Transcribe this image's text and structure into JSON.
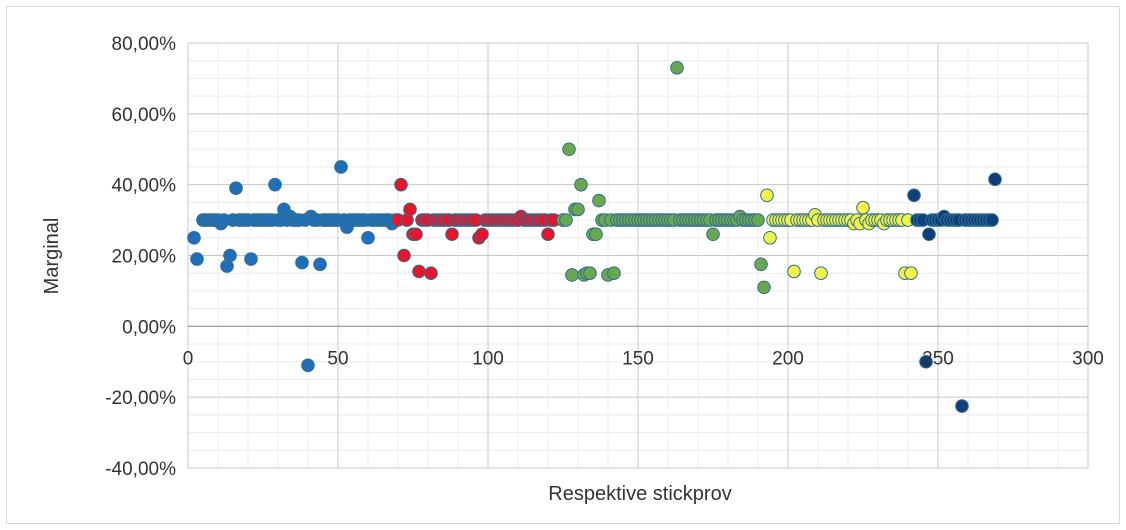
{
  "chart_data": {
    "type": "scatter",
    "title": "",
    "xlabel": "Respektive stickprov",
    "ylabel": "Marginal",
    "xlim": [
      0,
      300
    ],
    "ylim": [
      -40,
      80
    ],
    "x_ticks": [
      "0",
      "50",
      "100",
      "150",
      "200",
      "250",
      "300"
    ],
    "y_ticks": [
      "80,00%",
      "60,00%",
      "40,00%",
      "20,00%",
      "0,00%",
      "-20,00%",
      "-40,00%"
    ],
    "grid": true,
    "legend": "none",
    "series": [
      {
        "color": "#1f6fba",
        "points": [
          [
            2,
            25
          ],
          [
            3,
            19
          ],
          [
            5,
            30
          ],
          [
            6,
            30
          ],
          [
            7,
            30
          ],
          [
            8,
            30
          ],
          [
            9,
            30
          ],
          [
            10,
            30
          ],
          [
            11,
            29
          ],
          [
            12,
            30
          ],
          [
            13,
            17
          ],
          [
            14,
            20
          ],
          [
            15,
            30
          ],
          [
            16,
            39
          ],
          [
            17,
            30
          ],
          [
            18,
            30
          ],
          [
            19,
            30
          ],
          [
            20,
            30
          ],
          [
            21,
            19
          ],
          [
            22,
            30
          ],
          [
            23,
            30
          ],
          [
            24,
            30
          ],
          [
            25,
            30
          ],
          [
            26,
            30
          ],
          [
            27,
            30
          ],
          [
            28,
            30
          ],
          [
            29,
            40
          ],
          [
            30,
            30
          ],
          [
            31,
            30
          ],
          [
            32,
            33
          ],
          [
            33,
            30
          ],
          [
            34,
            31
          ],
          [
            35,
            30
          ],
          [
            36,
            30
          ],
          [
            37,
            30
          ],
          [
            38,
            18
          ],
          [
            39,
            30
          ],
          [
            40,
            -11
          ],
          [
            41,
            31
          ],
          [
            42,
            30
          ],
          [
            43,
            30
          ],
          [
            44,
            17.5
          ],
          [
            45,
            30
          ],
          [
            46,
            30
          ],
          [
            47,
            30
          ],
          [
            48,
            30
          ],
          [
            49,
            30
          ],
          [
            50,
            30
          ],
          [
            51,
            45
          ],
          [
            52,
            30
          ],
          [
            53,
            28
          ],
          [
            54,
            30
          ],
          [
            55,
            30
          ],
          [
            56,
            30
          ],
          [
            57,
            30
          ],
          [
            58,
            30
          ],
          [
            59,
            30
          ],
          [
            60,
            25
          ],
          [
            61,
            30
          ],
          [
            62,
            30
          ],
          [
            63,
            30
          ],
          [
            64,
            30
          ],
          [
            65,
            30
          ],
          [
            66,
            30
          ],
          [
            67,
            30
          ],
          [
            68,
            29
          ],
          [
            69,
            30
          ]
        ]
      },
      {
        "color": "#e8142a",
        "points": [
          [
            70,
            30
          ],
          [
            71,
            40
          ],
          [
            72,
            20
          ],
          [
            73,
            30
          ],
          [
            74,
            33
          ],
          [
            75,
            26
          ],
          [
            76,
            26
          ],
          [
            77,
            15.5
          ],
          [
            78,
            30
          ],
          [
            79,
            30
          ],
          [
            80,
            30
          ],
          [
            81,
            15
          ],
          [
            82,
            30
          ],
          [
            83,
            30
          ],
          [
            84,
            30
          ],
          [
            85,
            30
          ],
          [
            86,
            30
          ],
          [
            87,
            30
          ],
          [
            88,
            26
          ],
          [
            89,
            30
          ],
          [
            90,
            30
          ],
          [
            91,
            30
          ],
          [
            92,
            30
          ],
          [
            93,
            30
          ],
          [
            94,
            30
          ],
          [
            95,
            30
          ],
          [
            96,
            30
          ],
          [
            97,
            25
          ],
          [
            98,
            26
          ],
          [
            99,
            30
          ],
          [
            100,
            30
          ],
          [
            101,
            30
          ],
          [
            102,
            30
          ],
          [
            103,
            30
          ],
          [
            104,
            30
          ],
          [
            105,
            30
          ],
          [
            106,
            30
          ],
          [
            107,
            30
          ],
          [
            108,
            30
          ],
          [
            109,
            30
          ],
          [
            110,
            30
          ],
          [
            111,
            31
          ],
          [
            112,
            30
          ],
          [
            113,
            30
          ],
          [
            114,
            30
          ],
          [
            115,
            30
          ],
          [
            116,
            30
          ],
          [
            117,
            30
          ],
          [
            118,
            30
          ],
          [
            119,
            30
          ],
          [
            120,
            26
          ],
          [
            121,
            30
          ],
          [
            122,
            30
          ]
        ]
      },
      {
        "color": "#6aa84f",
        "points": [
          [
            125,
            30
          ],
          [
            126,
            30
          ],
          [
            127,
            50
          ],
          [
            128,
            14.5
          ],
          [
            129,
            33
          ],
          [
            130,
            33
          ],
          [
            131,
            40
          ],
          [
            132,
            14.5
          ],
          [
            133,
            15
          ],
          [
            134,
            15
          ],
          [
            135,
            26
          ],
          [
            136,
            26
          ],
          [
            137,
            35.5
          ],
          [
            138,
            30
          ],
          [
            139,
            30
          ],
          [
            140,
            14.5
          ],
          [
            141,
            30
          ],
          [
            142,
            15
          ],
          [
            143,
            30
          ],
          [
            144,
            30
          ],
          [
            145,
            30
          ],
          [
            146,
            30
          ],
          [
            147,
            30
          ],
          [
            148,
            30
          ],
          [
            149,
            30
          ],
          [
            150,
            30
          ],
          [
            151,
            30
          ],
          [
            152,
            30
          ],
          [
            153,
            30
          ],
          [
            154,
            30
          ],
          [
            155,
            30
          ],
          [
            156,
            30
          ],
          [
            157,
            30
          ],
          [
            158,
            30
          ],
          [
            159,
            30
          ],
          [
            160,
            30
          ],
          [
            161,
            30
          ],
          [
            162,
            30
          ],
          [
            163,
            73
          ],
          [
            164,
            30
          ],
          [
            165,
            30
          ],
          [
            166,
            30
          ],
          [
            167,
            30
          ],
          [
            168,
            30
          ],
          [
            169,
            30
          ],
          [
            170,
            30
          ],
          [
            171,
            30
          ],
          [
            172,
            30
          ],
          [
            173,
            30
          ],
          [
            174,
            30
          ],
          [
            175,
            26
          ],
          [
            176,
            30
          ],
          [
            177,
            30
          ],
          [
            178,
            30
          ],
          [
            179,
            30
          ],
          [
            180,
            30
          ],
          [
            181,
            30
          ],
          [
            182,
            30
          ],
          [
            183,
            30
          ],
          [
            184,
            31
          ],
          [
            185,
            30
          ],
          [
            186,
            30
          ],
          [
            187,
            30
          ],
          [
            188,
            30
          ],
          [
            189,
            30
          ],
          [
            190,
            30
          ],
          [
            191,
            17.5
          ],
          [
            192,
            11
          ]
        ]
      },
      {
        "color": "#f2f24a",
        "points": [
          [
            193,
            37
          ],
          [
            194,
            25
          ],
          [
            195,
            30
          ],
          [
            196,
            30
          ],
          [
            197,
            30
          ],
          [
            198,
            30
          ],
          [
            199,
            30
          ],
          [
            200,
            30
          ],
          [
            201,
            30
          ],
          [
            202,
            15.5
          ],
          [
            203,
            30
          ],
          [
            204,
            30
          ],
          [
            205,
            30
          ],
          [
            206,
            30
          ],
          [
            207,
            30
          ],
          [
            208,
            30
          ],
          [
            209,
            31.5
          ],
          [
            210,
            30
          ],
          [
            211,
            15
          ],
          [
            212,
            30
          ],
          [
            213,
            30
          ],
          [
            214,
            30
          ],
          [
            215,
            30
          ],
          [
            216,
            30
          ],
          [
            217,
            30
          ],
          [
            218,
            30
          ],
          [
            219,
            30
          ],
          [
            220,
            30
          ],
          [
            221,
            30
          ],
          [
            222,
            29
          ],
          [
            223,
            30
          ],
          [
            224,
            29
          ],
          [
            225,
            33.5
          ],
          [
            226,
            30
          ],
          [
            227,
            29
          ],
          [
            228,
            30
          ],
          [
            229,
            30
          ],
          [
            230,
            30
          ],
          [
            231,
            30
          ],
          [
            232,
            29
          ],
          [
            233,
            30
          ],
          [
            234,
            30
          ],
          [
            235,
            30
          ],
          [
            236,
            30
          ],
          [
            237,
            30
          ],
          [
            238,
            30
          ],
          [
            239,
            15
          ],
          [
            240,
            30
          ],
          [
            241,
            15
          ]
        ]
      },
      {
        "color": "#0f3f7a",
        "points": [
          [
            242,
            37
          ],
          [
            243,
            30
          ],
          [
            244,
            30
          ],
          [
            245,
            30
          ],
          [
            246,
            -10
          ],
          [
            247,
            26
          ],
          [
            248,
            30
          ],
          [
            249,
            30
          ],
          [
            250,
            30
          ],
          [
            251,
            30
          ],
          [
            252,
            31
          ],
          [
            253,
            30
          ],
          [
            254,
            30
          ],
          [
            255,
            30
          ],
          [
            256,
            30
          ],
          [
            257,
            30
          ],
          [
            258,
            -22.5
          ],
          [
            259,
            30
          ],
          [
            260,
            30
          ],
          [
            261,
            30
          ],
          [
            262,
            30
          ],
          [
            263,
            30
          ],
          [
            264,
            30
          ],
          [
            265,
            30
          ],
          [
            266,
            30
          ],
          [
            267,
            30
          ],
          [
            268,
            30
          ],
          [
            269,
            41.5
          ]
        ]
      }
    ]
  }
}
